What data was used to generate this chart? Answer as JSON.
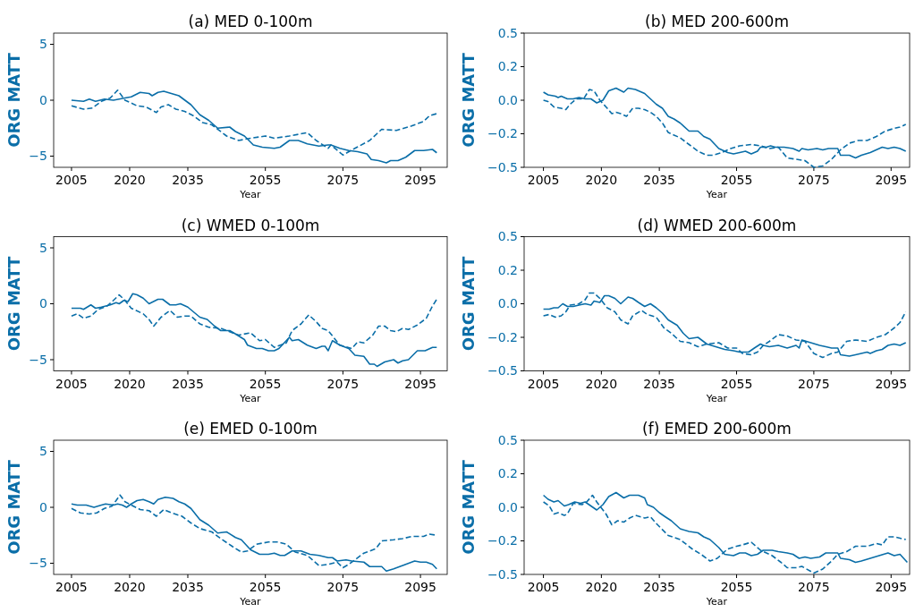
{
  "chart_data": [
    {
      "type": "line",
      "title": "(a) MED 0-100m",
      "xlabel": "Year",
      "ylabel": "ORG MATT",
      "xlim": [
        2000.4,
        2101.9
      ],
      "xticks": [
        2005,
        2020,
        2035,
        2055,
        2075,
        2095
      ],
      "ylim": [
        -6,
        6
      ],
      "yticks": [
        -5,
        0,
        5
      ],
      "series": [
        {
          "color": "#0a6ea8",
          "line_style": "solid",
          "x": [
            2005,
            2008.1,
            2009.6,
            2011.2,
            2013.5,
            2015.8,
            2018.8,
            2020.4,
            2022.7,
            2025,
            2025.8,
            2027.3,
            2028.8,
            2032.7,
            2035.8,
            2038.1,
            2040.4,
            2042.7,
            2045.8,
            2047.3,
            2049.6,
            2051.9,
            2054.2,
            2057.3,
            2058.8,
            2061.2,
            2063.5,
            2065.8,
            2068.8,
            2071.2,
            2071.9,
            2074.2,
            2076.5,
            2078.8,
            2081.2,
            2082.3,
            2084.2,
            2086.2,
            2087.3,
            2089.2,
            2091.2,
            2093.5,
            2095.8,
            2098.1,
            2099.2
          ],
          "values": [
            0.0,
            -0.1,
            0.1,
            -0.1,
            0.1,
            0.0,
            0.2,
            0.3,
            0.7,
            0.6,
            0.4,
            0.7,
            0.8,
            0.4,
            -0.4,
            -1.3,
            -1.8,
            -2.5,
            -2.4,
            -2.8,
            -3.2,
            -4.0,
            -4.2,
            -4.3,
            -4.2,
            -3.6,
            -3.6,
            -3.9,
            -4.1,
            -4.0,
            -4.0,
            -4.3,
            -4.5,
            -4.6,
            -4.8,
            -5.3,
            -5.4,
            -5.6,
            -5.4,
            -5.4,
            -5.1,
            -4.5,
            -4.5,
            -4.4,
            -4.7
          ]
        },
        {
          "color": "#0a6ea8",
          "line_style": "dashed",
          "x": [
            2005,
            2008.1,
            2010.4,
            2012.7,
            2015,
            2016.9,
            2018.8,
            2021.9,
            2024.2,
            2026.9,
            2028.1,
            2030,
            2031.9,
            2034.2,
            2036.5,
            2038.8,
            2041.2,
            2045,
            2048.1,
            2051.2,
            2055,
            2057.3,
            2061.2,
            2065.8,
            2068.1,
            2071.2,
            2071.9,
            2075,
            2078.1,
            2081.9,
            2085,
            2088.8,
            2092.7,
            2095.8,
            2097.3,
            2099.2
          ],
          "values": [
            -0.5,
            -0.8,
            -0.7,
            -0.1,
            0.2,
            0.9,
            0.0,
            -0.5,
            -0.6,
            -1.1,
            -0.6,
            -0.4,
            -0.8,
            -1.0,
            -1.4,
            -2.0,
            -2.2,
            -3.2,
            -3.6,
            -3.4,
            -3.2,
            -3.4,
            -3.2,
            -2.9,
            -3.6,
            -4.3,
            -4.0,
            -4.9,
            -4.3,
            -3.6,
            -2.6,
            -2.7,
            -2.3,
            -1.9,
            -1.4,
            -1.2
          ]
        }
      ]
    },
    {
      "type": "line",
      "title": "(b) MED 200-600m",
      "xlabel": "Year",
      "ylabel": "ORG MATT",
      "xlim": [
        2000,
        2099.8
      ],
      "xticks": [
        2005,
        2020,
        2035,
        2055,
        2075,
        2095
      ],
      "ylim": [
        -0.5,
        0.5
      ],
      "yticks": [
        -0.5,
        {
          "value": -0.25,
          "label": "−0.2"
        },
        {
          "value": 0,
          "label": "0.0"
        },
        {
          "value": 0.25,
          "label": "0.2"
        },
        0.5
      ],
      "series": [
        {
          "color": "#0a6ea8",
          "line_style": "solid",
          "x": [
            2005,
            2006.2,
            2008.1,
            2008.8,
            2009.6,
            2011.2,
            2012.7,
            2014.2,
            2015.8,
            2017.3,
            2018.8,
            2020.4,
            2021.9,
            2023.8,
            2025.8,
            2026.9,
            2028.8,
            2031.2,
            2032.7,
            2034.2,
            2035.8,
            2037.3,
            2038.8,
            2040.4,
            2042.7,
            2045,
            2046.5,
            2048.1,
            2050.4,
            2052.7,
            2054.2,
            2055.8,
            2057.3,
            2058.8,
            2060.4,
            2061.2,
            2062.7,
            2063.8,
            2065,
            2067.3,
            2069.6,
            2071.2,
            2071.9,
            2073.5,
            2075.8,
            2077.3,
            2078.8,
            2081.2,
            2081.9,
            2084.2,
            2085.8,
            2087.3,
            2089.6,
            2092.7,
            2094.2,
            2095.8,
            2097.3,
            2098.8
          ],
          "values": [
            0.06,
            0.04,
            0.03,
            0.02,
            0.03,
            0.01,
            0.01,
            0.02,
            0.01,
            0.01,
            -0.02,
            0.0,
            0.07,
            0.09,
            0.06,
            0.09,
            0.08,
            0.05,
            0.01,
            -0.03,
            -0.06,
            -0.12,
            -0.14,
            -0.17,
            -0.23,
            -0.23,
            -0.27,
            -0.29,
            -0.36,
            -0.39,
            -0.4,
            -0.39,
            -0.38,
            -0.4,
            -0.38,
            -0.35,
            -0.35,
            -0.34,
            -0.35,
            -0.35,
            -0.36,
            -0.38,
            -0.36,
            -0.37,
            -0.36,
            -0.37,
            -0.36,
            -0.36,
            -0.41,
            -0.41,
            -0.43,
            -0.41,
            -0.39,
            -0.35,
            -0.36,
            -0.35,
            -0.36,
            -0.38
          ]
        },
        {
          "color": "#0a6ea8",
          "line_style": "dashed",
          "x": [
            2005,
            2006.2,
            2007.7,
            2009.6,
            2010.8,
            2011.9,
            2013.5,
            2015.4,
            2016.9,
            2018.1,
            2019.6,
            2021.2,
            2022.7,
            2023.8,
            2025,
            2026.5,
            2028.1,
            2029.6,
            2031.2,
            2032.7,
            2034.2,
            2035.8,
            2037.3,
            2038.8,
            2040.4,
            2042.7,
            2045,
            2047.3,
            2048.8,
            2051.2,
            2053.5,
            2055.8,
            2058.8,
            2061.2,
            2063.5,
            2065.8,
            2068.1,
            2070.4,
            2072.7,
            2075,
            2077.3,
            2079.6,
            2081.9,
            2084.2,
            2086.5,
            2088.8,
            2091.2,
            2093.5,
            2095.8,
            2097.3,
            2098.8
          ],
          "values": [
            0.0,
            -0.01,
            -0.05,
            -0.06,
            -0.07,
            -0.03,
            0.01,
            0.01,
            0.08,
            0.07,
            0.0,
            -0.05,
            -0.1,
            -0.09,
            -0.1,
            -0.12,
            -0.06,
            -0.06,
            -0.07,
            -0.09,
            -0.12,
            -0.17,
            -0.24,
            -0.26,
            -0.28,
            -0.33,
            -0.38,
            -0.41,
            -0.41,
            -0.39,
            -0.36,
            -0.34,
            -0.33,
            -0.34,
            -0.36,
            -0.35,
            -0.43,
            -0.44,
            -0.45,
            -0.5,
            -0.49,
            -0.44,
            -0.37,
            -0.32,
            -0.3,
            -0.3,
            -0.27,
            -0.23,
            -0.21,
            -0.2,
            -0.18
          ]
        }
      ]
    },
    {
      "type": "line",
      "title": "(c) WMED 0-100m",
      "xlabel": "Year",
      "ylabel": "ORG MATT",
      "xlim": [
        2000.4,
        2101.9
      ],
      "xticks": [
        2005,
        2020,
        2035,
        2055,
        2075,
        2095
      ],
      "ylim": [
        -6,
        6
      ],
      "yticks": [
        -5,
        0,
        5
      ],
      "series": [
        {
          "color": "#0a6ea8",
          "line_style": "solid",
          "x": [
            2005,
            2007.3,
            2008.1,
            2010,
            2011.2,
            2012.7,
            2015,
            2016.5,
            2017.3,
            2018.5,
            2019.6,
            2020.8,
            2021.9,
            2023.5,
            2025,
            2027.3,
            2028.5,
            2030.4,
            2031.9,
            2033.1,
            2035,
            2038.1,
            2040,
            2041.9,
            2043.5,
            2045.8,
            2047.3,
            2049.6,
            2050.4,
            2052.7,
            2054.2,
            2055.8,
            2057.3,
            2058.5,
            2061.2,
            2061.9,
            2063.5,
            2065.8,
            2068.1,
            2069.6,
            2070.4,
            2071.2,
            2072.3,
            2074.2,
            2076.5,
            2078.1,
            2080.4,
            2081.9,
            2083.1,
            2083.8,
            2085.8,
            2088.1,
            2089.2,
            2090.4,
            2091.9,
            2094.2,
            2096.2,
            2098.1,
            2099.2
          ],
          "values": [
            -0.4,
            -0.4,
            -0.5,
            -0.1,
            -0.4,
            -0.3,
            -0.1,
            0.1,
            0.0,
            0.3,
            0.2,
            0.9,
            0.8,
            0.5,
            0.0,
            0.4,
            0.4,
            -0.1,
            -0.1,
            0.0,
            -0.3,
            -1.2,
            -1.4,
            -2.0,
            -2.4,
            -2.4,
            -2.7,
            -3.2,
            -3.7,
            -4.0,
            -4.0,
            -4.2,
            -4.2,
            -4.0,
            -3.0,
            -3.3,
            -3.2,
            -3.7,
            -4.0,
            -3.8,
            -3.8,
            -4.2,
            -3.3,
            -3.7,
            -4.0,
            -4.6,
            -4.7,
            -5.4,
            -5.4,
            -5.6,
            -5.2,
            -5.0,
            -5.3,
            -5.1,
            -5.0,
            -4.2,
            -4.2,
            -3.9,
            -3.9
          ]
        },
        {
          "color": "#0a6ea8",
          "line_style": "dashed",
          "x": [
            2005,
            2006.5,
            2008.1,
            2010,
            2011.9,
            2014.2,
            2015.8,
            2017.3,
            2018.8,
            2020.4,
            2023.5,
            2025,
            2026.2,
            2028.1,
            2030.4,
            2032.3,
            2034.2,
            2035.8,
            2038.1,
            2040.4,
            2043.5,
            2045.8,
            2048.1,
            2051.2,
            2053.5,
            2055,
            2057.3,
            2060.4,
            2061.9,
            2064.2,
            2066.2,
            2068.1,
            2069.6,
            2071.2,
            2074.2,
            2077.3,
            2078.8,
            2080.4,
            2082.7,
            2084.2,
            2085.8,
            2087.3,
            2088.8,
            2090.4,
            2091.9,
            2094.2,
            2096.5,
            2098.1,
            2099.2
          ],
          "values": [
            -1.1,
            -0.9,
            -1.3,
            -1.1,
            -0.5,
            -0.2,
            0.3,
            0.8,
            0.3,
            -0.4,
            -0.9,
            -1.4,
            -2.0,
            -1.2,
            -0.6,
            -1.2,
            -1.1,
            -1.1,
            -1.8,
            -2.1,
            -2.2,
            -2.5,
            -2.8,
            -2.6,
            -3.3,
            -3.2,
            -3.9,
            -3.5,
            -2.4,
            -1.8,
            -1.0,
            -1.6,
            -2.2,
            -2.4,
            -3.7,
            -4.0,
            -3.4,
            -3.5,
            -2.8,
            -2.0,
            -2.0,
            -2.4,
            -2.5,
            -2.2,
            -2.3,
            -1.9,
            -1.3,
            -0.2,
            0.4
          ]
        }
      ]
    },
    {
      "type": "line",
      "title": "(d) WMED 200-600m",
      "xlabel": "Year",
      "ylabel": "ORG MATT",
      "xlim": [
        2000,
        2099.8
      ],
      "xticks": [
        2005,
        2020,
        2035,
        2055,
        2075,
        2095
      ],
      "ylim": [
        -0.5,
        0.5
      ],
      "yticks": [
        -0.5,
        {
          "value": -0.25,
          "label": "−0.2"
        },
        {
          "value": 0,
          "label": "0.0"
        },
        {
          "value": 0.25,
          "label": "0.2"
        },
        0.5
      ],
      "series": [
        {
          "color": "#0a6ea8",
          "line_style": "solid",
          "x": [
            2005,
            2006.5,
            2007.7,
            2008.8,
            2010,
            2011.2,
            2012.7,
            2014.2,
            2015.8,
            2017.3,
            2018.1,
            2019.6,
            2020.8,
            2021.9,
            2023.5,
            2025,
            2026.9,
            2028.1,
            2029.6,
            2031.2,
            2032.7,
            2034.2,
            2035.8,
            2037.3,
            2039.6,
            2041.2,
            2042.7,
            2045,
            2047.3,
            2049.6,
            2051.9,
            2054.2,
            2055.8,
            2058.1,
            2059.6,
            2061.2,
            2061.9,
            2063.5,
            2065.8,
            2068.1,
            2070.4,
            2071.2,
            2071.9,
            2074.2,
            2076.5,
            2078.1,
            2079.6,
            2081.2,
            2081.9,
            2084.2,
            2085.8,
            2087.3,
            2088.8,
            2089.6,
            2091.2,
            2092.7,
            2094.2,
            2095.8,
            2097.3,
            2098.8
          ],
          "values": [
            -0.04,
            -0.04,
            -0.03,
            -0.03,
            0.0,
            -0.02,
            -0.02,
            -0.01,
            0.0,
            -0.01,
            0.02,
            0.01,
            0.06,
            0.06,
            0.04,
            0.0,
            0.05,
            0.04,
            0.01,
            -0.02,
            0.0,
            -0.03,
            -0.07,
            -0.12,
            -0.16,
            -0.22,
            -0.26,
            -0.25,
            -0.3,
            -0.32,
            -0.34,
            -0.35,
            -0.36,
            -0.36,
            -0.33,
            -0.3,
            -0.31,
            -0.32,
            -0.31,
            -0.33,
            -0.31,
            -0.33,
            -0.27,
            -0.29,
            -0.31,
            -0.32,
            -0.33,
            -0.33,
            -0.38,
            -0.39,
            -0.38,
            -0.37,
            -0.36,
            -0.37,
            -0.35,
            -0.34,
            -0.31,
            -0.3,
            -0.31,
            -0.29
          ]
        },
        {
          "color": "#0a6ea8",
          "line_style": "dashed",
          "x": [
            2005,
            2006.5,
            2008.1,
            2009.6,
            2010.8,
            2011.9,
            2014.2,
            2015.8,
            2016.9,
            2018.1,
            2019.6,
            2021.5,
            2023.5,
            2025,
            2026.9,
            2028.1,
            2030.4,
            2031.9,
            2034.2,
            2036.2,
            2038.1,
            2040.4,
            2042.7,
            2045,
            2047.3,
            2050.4,
            2052.7,
            2055,
            2056.5,
            2058.8,
            2060.4,
            2061.9,
            2063.5,
            2065.8,
            2068.1,
            2070.4,
            2072.7,
            2075,
            2077.3,
            2079.6,
            2081.2,
            2083.5,
            2085.8,
            2088.8,
            2091.2,
            2093.5,
            2095.8,
            2097.3,
            2098.8
          ],
          "values": [
            -0.09,
            -0.08,
            -0.1,
            -0.09,
            -0.06,
            -0.01,
            0.0,
            0.03,
            0.08,
            0.08,
            0.04,
            -0.03,
            -0.06,
            -0.12,
            -0.15,
            -0.09,
            -0.05,
            -0.08,
            -0.1,
            -0.18,
            -0.22,
            -0.28,
            -0.29,
            -0.32,
            -0.3,
            -0.29,
            -0.33,
            -0.33,
            -0.37,
            -0.38,
            -0.36,
            -0.31,
            -0.28,
            -0.23,
            -0.24,
            -0.27,
            -0.28,
            -0.37,
            -0.4,
            -0.37,
            -0.36,
            -0.28,
            -0.27,
            -0.28,
            -0.25,
            -0.23,
            -0.18,
            -0.14,
            -0.06
          ]
        }
      ]
    },
    {
      "type": "line",
      "title": "(e) EMED 0-100m",
      "xlabel": "Year",
      "ylabel": "ORG MATT",
      "xlim": [
        2000.4,
        2101.9
      ],
      "xticks": [
        2005,
        2020,
        2035,
        2055,
        2075,
        2095
      ],
      "ylim": [
        -6,
        6
      ],
      "yticks": [
        -5,
        0,
        5
      ],
      "series": [
        {
          "color": "#0a6ea8",
          "line_style": "solid",
          "x": [
            2005,
            2006.5,
            2008.8,
            2010.8,
            2012.7,
            2013.8,
            2015.8,
            2016.9,
            2018.1,
            2019.2,
            2020.4,
            2021.9,
            2023.5,
            2025,
            2026.2,
            2027.3,
            2029.2,
            2031.2,
            2032.7,
            2034.2,
            2035.8,
            2038.1,
            2040.4,
            2042.7,
            2045,
            2047.3,
            2048.8,
            2051.2,
            2053.5,
            2055.8,
            2057.3,
            2058.8,
            2060,
            2061.9,
            2064.2,
            2066.5,
            2068.8,
            2071.2,
            2072.3,
            2073.5,
            2075.8,
            2077.3,
            2080.4,
            2081.9,
            2085,
            2086.2,
            2088.1,
            2091.2,
            2093.5,
            2095,
            2096.5,
            2098.1,
            2099.2
          ],
          "values": [
            0.3,
            0.2,
            0.2,
            0.0,
            0.2,
            0.3,
            0.2,
            0.3,
            0.2,
            0.0,
            0.3,
            0.6,
            0.7,
            0.5,
            0.3,
            0.7,
            0.9,
            0.8,
            0.5,
            0.3,
            -0.1,
            -1.1,
            -1.6,
            -2.3,
            -2.2,
            -2.7,
            -2.9,
            -3.8,
            -4.2,
            -4.2,
            -4.1,
            -4.3,
            -4.3,
            -3.9,
            -3.9,
            -4.2,
            -4.3,
            -4.5,
            -4.5,
            -4.8,
            -4.7,
            -4.8,
            -4.9,
            -5.3,
            -5.3,
            -5.7,
            -5.5,
            -5.1,
            -4.8,
            -4.9,
            -4.9,
            -5.1,
            -5.5
          ]
        },
        {
          "color": "#0a6ea8",
          "line_style": "dashed",
          "x": [
            2005,
            2007.3,
            2009.6,
            2011.5,
            2013.5,
            2015.4,
            2016.5,
            2017.5,
            2018.8,
            2020.4,
            2022.7,
            2025,
            2026.9,
            2028.8,
            2030.8,
            2033.5,
            2035.8,
            2038.1,
            2041.2,
            2043.5,
            2046.5,
            2048.8,
            2050.4,
            2052.7,
            2055.8,
            2058.1,
            2060.4,
            2062.7,
            2065.8,
            2068.8,
            2071.2,
            2073.5,
            2075,
            2076.5,
            2080.4,
            2083.5,
            2085,
            2088.1,
            2090.4,
            2092.7,
            2095.8,
            2097.3,
            2099.2
          ],
          "values": [
            -0.1,
            -0.5,
            -0.6,
            -0.5,
            -0.1,
            0.1,
            0.6,
            1.1,
            0.5,
            0.2,
            -0.2,
            -0.3,
            -0.8,
            -0.2,
            -0.5,
            -0.8,
            -1.4,
            -1.9,
            -2.2,
            -2.8,
            -3.5,
            -4.0,
            -3.9,
            -3.3,
            -3.1,
            -3.1,
            -3.3,
            -4.0,
            -4.3,
            -5.2,
            -5.1,
            -4.9,
            -5.4,
            -5.1,
            -4.1,
            -3.7,
            -3.0,
            -2.9,
            -2.8,
            -2.6,
            -2.6,
            -2.4,
            -2.5
          ]
        }
      ]
    },
    {
      "type": "line",
      "title": "(f) EMED 200-600m",
      "xlabel": "Year",
      "ylabel": "ORG MATT",
      "xlim": [
        2000,
        2099.8
      ],
      "xticks": [
        2005,
        2020,
        2035,
        2055,
        2075,
        2095
      ],
      "ylim": [
        -0.5,
        0.5
      ],
      "yticks": [
        -0.5,
        {
          "value": -0.25,
          "label": "−0.2"
        },
        {
          "value": 0,
          "label": "0.0"
        },
        {
          "value": 0.25,
          "label": "0.2"
        },
        0.5
      ],
      "series": [
        {
          "color": "#0a6ea8",
          "line_style": "solid",
          "x": [
            2005,
            2006.2,
            2007.7,
            2008.8,
            2010.4,
            2011.5,
            2013.1,
            2014.6,
            2015.8,
            2017.3,
            2018.8,
            2020.4,
            2021.9,
            2023.8,
            2025.8,
            2027.3,
            2029.6,
            2031.2,
            2031.9,
            2033.5,
            2035,
            2036.5,
            2038.1,
            2040.4,
            2042.7,
            2045,
            2046.5,
            2048.1,
            2050.4,
            2051.9,
            2054.2,
            2055.8,
            2057.3,
            2058.8,
            2060.4,
            2061.9,
            2064.2,
            2065.8,
            2068.1,
            2069.6,
            2071.2,
            2072.7,
            2074.2,
            2076.5,
            2078.1,
            2081.2,
            2081.9,
            2084.2,
            2085.8,
            2087.3,
            2089.6,
            2091.9,
            2094.2,
            2095.8,
            2097.3,
            2099.2
          ],
          "values": [
            0.09,
            0.06,
            0.04,
            0.05,
            0.01,
            0.02,
            0.04,
            0.03,
            0.04,
            0.01,
            -0.02,
            0.02,
            0.08,
            0.11,
            0.07,
            0.09,
            0.09,
            0.07,
            0.02,
            0.0,
            -0.04,
            -0.07,
            -0.1,
            -0.16,
            -0.18,
            -0.19,
            -0.22,
            -0.24,
            -0.3,
            -0.35,
            -0.36,
            -0.34,
            -0.34,
            -0.36,
            -0.35,
            -0.32,
            -0.32,
            -0.33,
            -0.34,
            -0.35,
            -0.38,
            -0.37,
            -0.38,
            -0.37,
            -0.34,
            -0.34,
            -0.38,
            -0.39,
            -0.41,
            -0.4,
            -0.38,
            -0.36,
            -0.34,
            -0.36,
            -0.35,
            -0.41
          ]
        },
        {
          "color": "#0a6ea8",
          "line_style": "dashed",
          "x": [
            2005,
            2006.5,
            2007.7,
            2008.8,
            2010.4,
            2011.2,
            2012.7,
            2015,
            2016.2,
            2017.7,
            2018.8,
            2021.2,
            2022.7,
            2024.2,
            2025.8,
            2027.3,
            2028.8,
            2031.2,
            2032.7,
            2034.2,
            2037.3,
            2040.4,
            2043.5,
            2045.8,
            2048.1,
            2050,
            2052.7,
            2055,
            2056.5,
            2058.8,
            2061.2,
            2064.2,
            2066.5,
            2068.1,
            2070.4,
            2071.9,
            2075,
            2077.3,
            2079.6,
            2081.2,
            2083.5,
            2085.8,
            2088.8,
            2091.2,
            2092.7,
            2094.2,
            2095.8,
            2097.3,
            2098.8
          ],
          "values": [
            0.04,
            0.01,
            -0.05,
            -0.04,
            -0.06,
            -0.05,
            0.03,
            0.02,
            0.04,
            0.09,
            0.04,
            -0.05,
            -0.13,
            -0.1,
            -0.11,
            -0.08,
            -0.06,
            -0.08,
            -0.07,
            -0.12,
            -0.21,
            -0.24,
            -0.31,
            -0.35,
            -0.4,
            -0.38,
            -0.31,
            -0.29,
            -0.28,
            -0.26,
            -0.32,
            -0.36,
            -0.41,
            -0.45,
            -0.45,
            -0.44,
            -0.49,
            -0.46,
            -0.4,
            -0.35,
            -0.33,
            -0.29,
            -0.29,
            -0.27,
            -0.28,
            -0.22,
            -0.22,
            -0.23,
            -0.24
          ]
        }
      ]
    }
  ]
}
